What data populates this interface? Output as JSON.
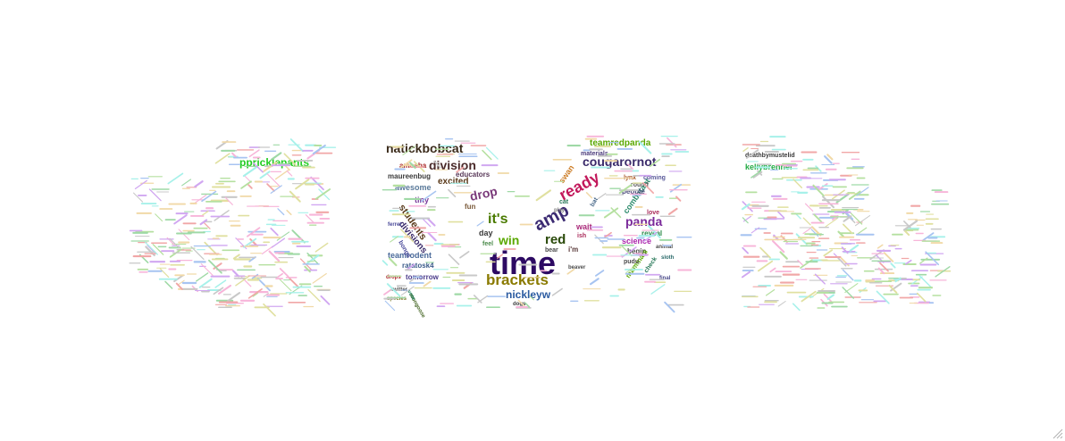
{
  "word_cloud": {
    "words": [
      {
        "text": "time",
        "color": "#2d0a63"
      },
      {
        "text": "brackets",
        "color": "#8a7a00"
      },
      {
        "text": "ready",
        "color": "#c2185b"
      },
      {
        "text": "amp",
        "color": "#3b2a72"
      },
      {
        "text": "division",
        "color": "#4a2a2a"
      },
      {
        "text": "cougarornot",
        "color": "#3a2a6a"
      },
      {
        "text": "natickbobcat",
        "color": "#3a2a1a"
      },
      {
        "text": "it's",
        "color": "#4a7a00"
      },
      {
        "text": "red",
        "color": "#2a4a0a"
      },
      {
        "text": "win",
        "color": "#5aa800"
      },
      {
        "text": "drop",
        "color": "#7a3a7a"
      },
      {
        "text": "panda",
        "color": "#7a2a9a"
      },
      {
        "text": "nickleyw",
        "color": "#2a5aa0"
      },
      {
        "text": "teamredpanda",
        "color": "#5aa800"
      },
      {
        "text": "ppricklepants",
        "color": "#22cc22"
      },
      {
        "text": "students",
        "color": "#5a3a1a"
      },
      {
        "text": "divisions",
        "color": "#3a2a6a"
      },
      {
        "text": "excited",
        "color": "#5a3a1a"
      },
      {
        "text": "awesome",
        "color": "#5a7a9a"
      },
      {
        "text": "combatant",
        "color": "#2a8a6a"
      },
      {
        "text": "science",
        "color": "#aa22aa"
      },
      {
        "text": "swan",
        "color": "#cc7a22"
      },
      {
        "text": "tiny",
        "color": "#7a3a9a"
      },
      {
        "text": "teamrodent",
        "color": "#4a6a9a"
      },
      {
        "text": "ratatosk4",
        "color": "#3a5a8a"
      },
      {
        "text": "educators",
        "color": "#5a3a5a"
      },
      {
        "text": "amoeba",
        "color": "#aa2a2a"
      },
      {
        "text": "maureenbug",
        "color": "#3a3a3a"
      },
      {
        "text": "kellybrenner",
        "color": "#22aa44"
      },
      {
        "text": "deathbymustelid",
        "color": "#3a3a3a"
      },
      {
        "text": "day",
        "color": "#3a3a3a"
      },
      {
        "text": "fun",
        "color": "#7a5a3a"
      },
      {
        "text": "wait",
        "color": "#aa2a7a"
      },
      {
        "text": "reveal",
        "color": "#2a8a4a"
      },
      {
        "text": "people",
        "color": "#4a4a7a"
      },
      {
        "text": "love",
        "color": "#aa2a5a"
      },
      {
        "text": "begin",
        "color": "#4a4a4a"
      },
      {
        "text": "coming",
        "color": "#5a5a9a"
      },
      {
        "text": "round",
        "color": "#5a5a5a"
      },
      {
        "text": "bear",
        "color": "#4a4a4a"
      },
      {
        "text": "i'm",
        "color": "#5a3a3a"
      },
      {
        "text": "cat",
        "color": "#2a7a5a"
      },
      {
        "text": "lynx",
        "color": "#aa5a2a"
      },
      {
        "text": "tomorrow",
        "color": "#4a3a8a"
      },
      {
        "text": "bongs",
        "color": "#4a4a9a"
      },
      {
        "text": "mammals",
        "color": "#5aa800"
      },
      {
        "text": "pudu",
        "color": "#4a4a4a"
      },
      {
        "text": "materials",
        "color": "#4a3a7a"
      },
      {
        "text": "bat",
        "color": "#4a6a8a"
      },
      {
        "text": "ish",
        "color": "#aa2a5a"
      },
      {
        "text": "play",
        "color": "#7a7a7a"
      },
      {
        "text": "feel",
        "color": "#4a8a4a"
      },
      {
        "text": "check",
        "color": "#2a7a5a"
      },
      {
        "text": "animal",
        "color": "#4a4a4a"
      },
      {
        "text": "final",
        "color": "#4a4a8a"
      },
      {
        "text": "twitter",
        "color": "#4a4a4a"
      },
      {
        "text": "species",
        "color": "#7a7a2a"
      },
      {
        "text": "drops",
        "color": "#aa2a2a"
      },
      {
        "text": "sloth",
        "color": "#2a6a6a"
      },
      {
        "text": "beaver",
        "color": "#4a4a4a"
      },
      {
        "text": "dogs",
        "color": "#3a3a3a"
      },
      {
        "text": "mongoose",
        "color": "#4a6a2a"
      },
      {
        "text": "ferret",
        "color": "#4a4a9a"
      },
      {
        "text": "vote",
        "color": "#2a8a6a"
      }
    ],
    "colors": {
      "background": "#ffffff",
      "filler_palette": [
        "#c8c8c8",
        "#9fd9a6",
        "#f1a7a7",
        "#a7c4f1",
        "#f1d9a7",
        "#d1a7f1",
        "#a7f1ea",
        "#e0e0a0",
        "#f7b5d9",
        "#b5e0a0"
      ]
    }
  }
}
